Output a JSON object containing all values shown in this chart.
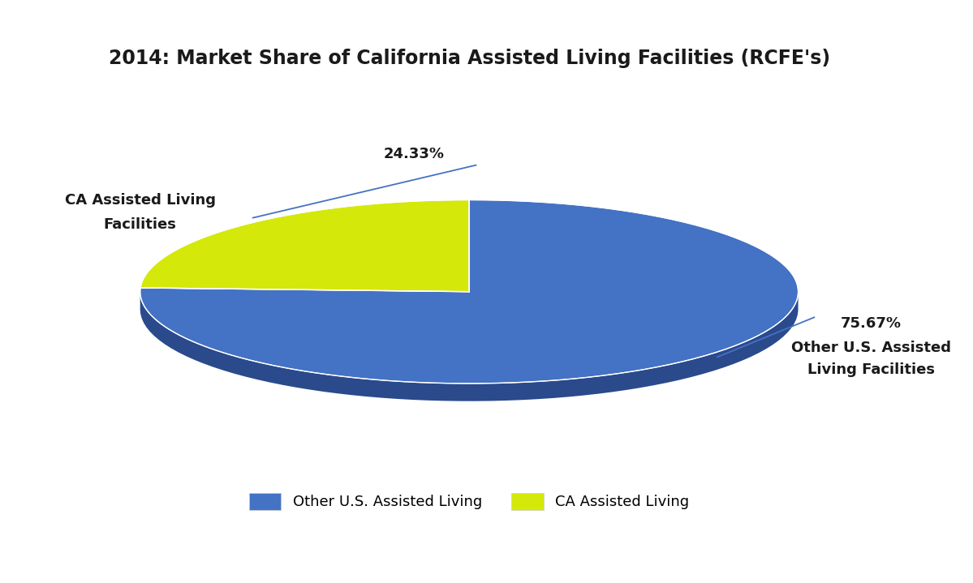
{
  "title": "2014: Market Share of California Assisted Living Facilities (RCFE's)",
  "slices": [
    75.67,
    24.33
  ],
  "labels": [
    "Other U.S. Assisted Living",
    "CA Assisted Living"
  ],
  "colors": [
    "#4472C4",
    "#D4E80A"
  ],
  "shadow_colors": [
    "#2A4A8C",
    "#8A9A06"
  ],
  "pct_labels": [
    "75.67%",
    "24.33%"
  ],
  "annotation_labels_right": [
    "Other U.S. Assisted",
    "Living Facilities"
  ],
  "annotation_labels_left": [
    "CA Assisted Living",
    "Facilities"
  ],
  "title_fontsize": 17,
  "label_fontsize": 13,
  "pct_fontsize": 13,
  "startangle": 90,
  "background_color": "#FFFFFF",
  "text_color": "#1a1a1a",
  "legend_fontsize": 13
}
